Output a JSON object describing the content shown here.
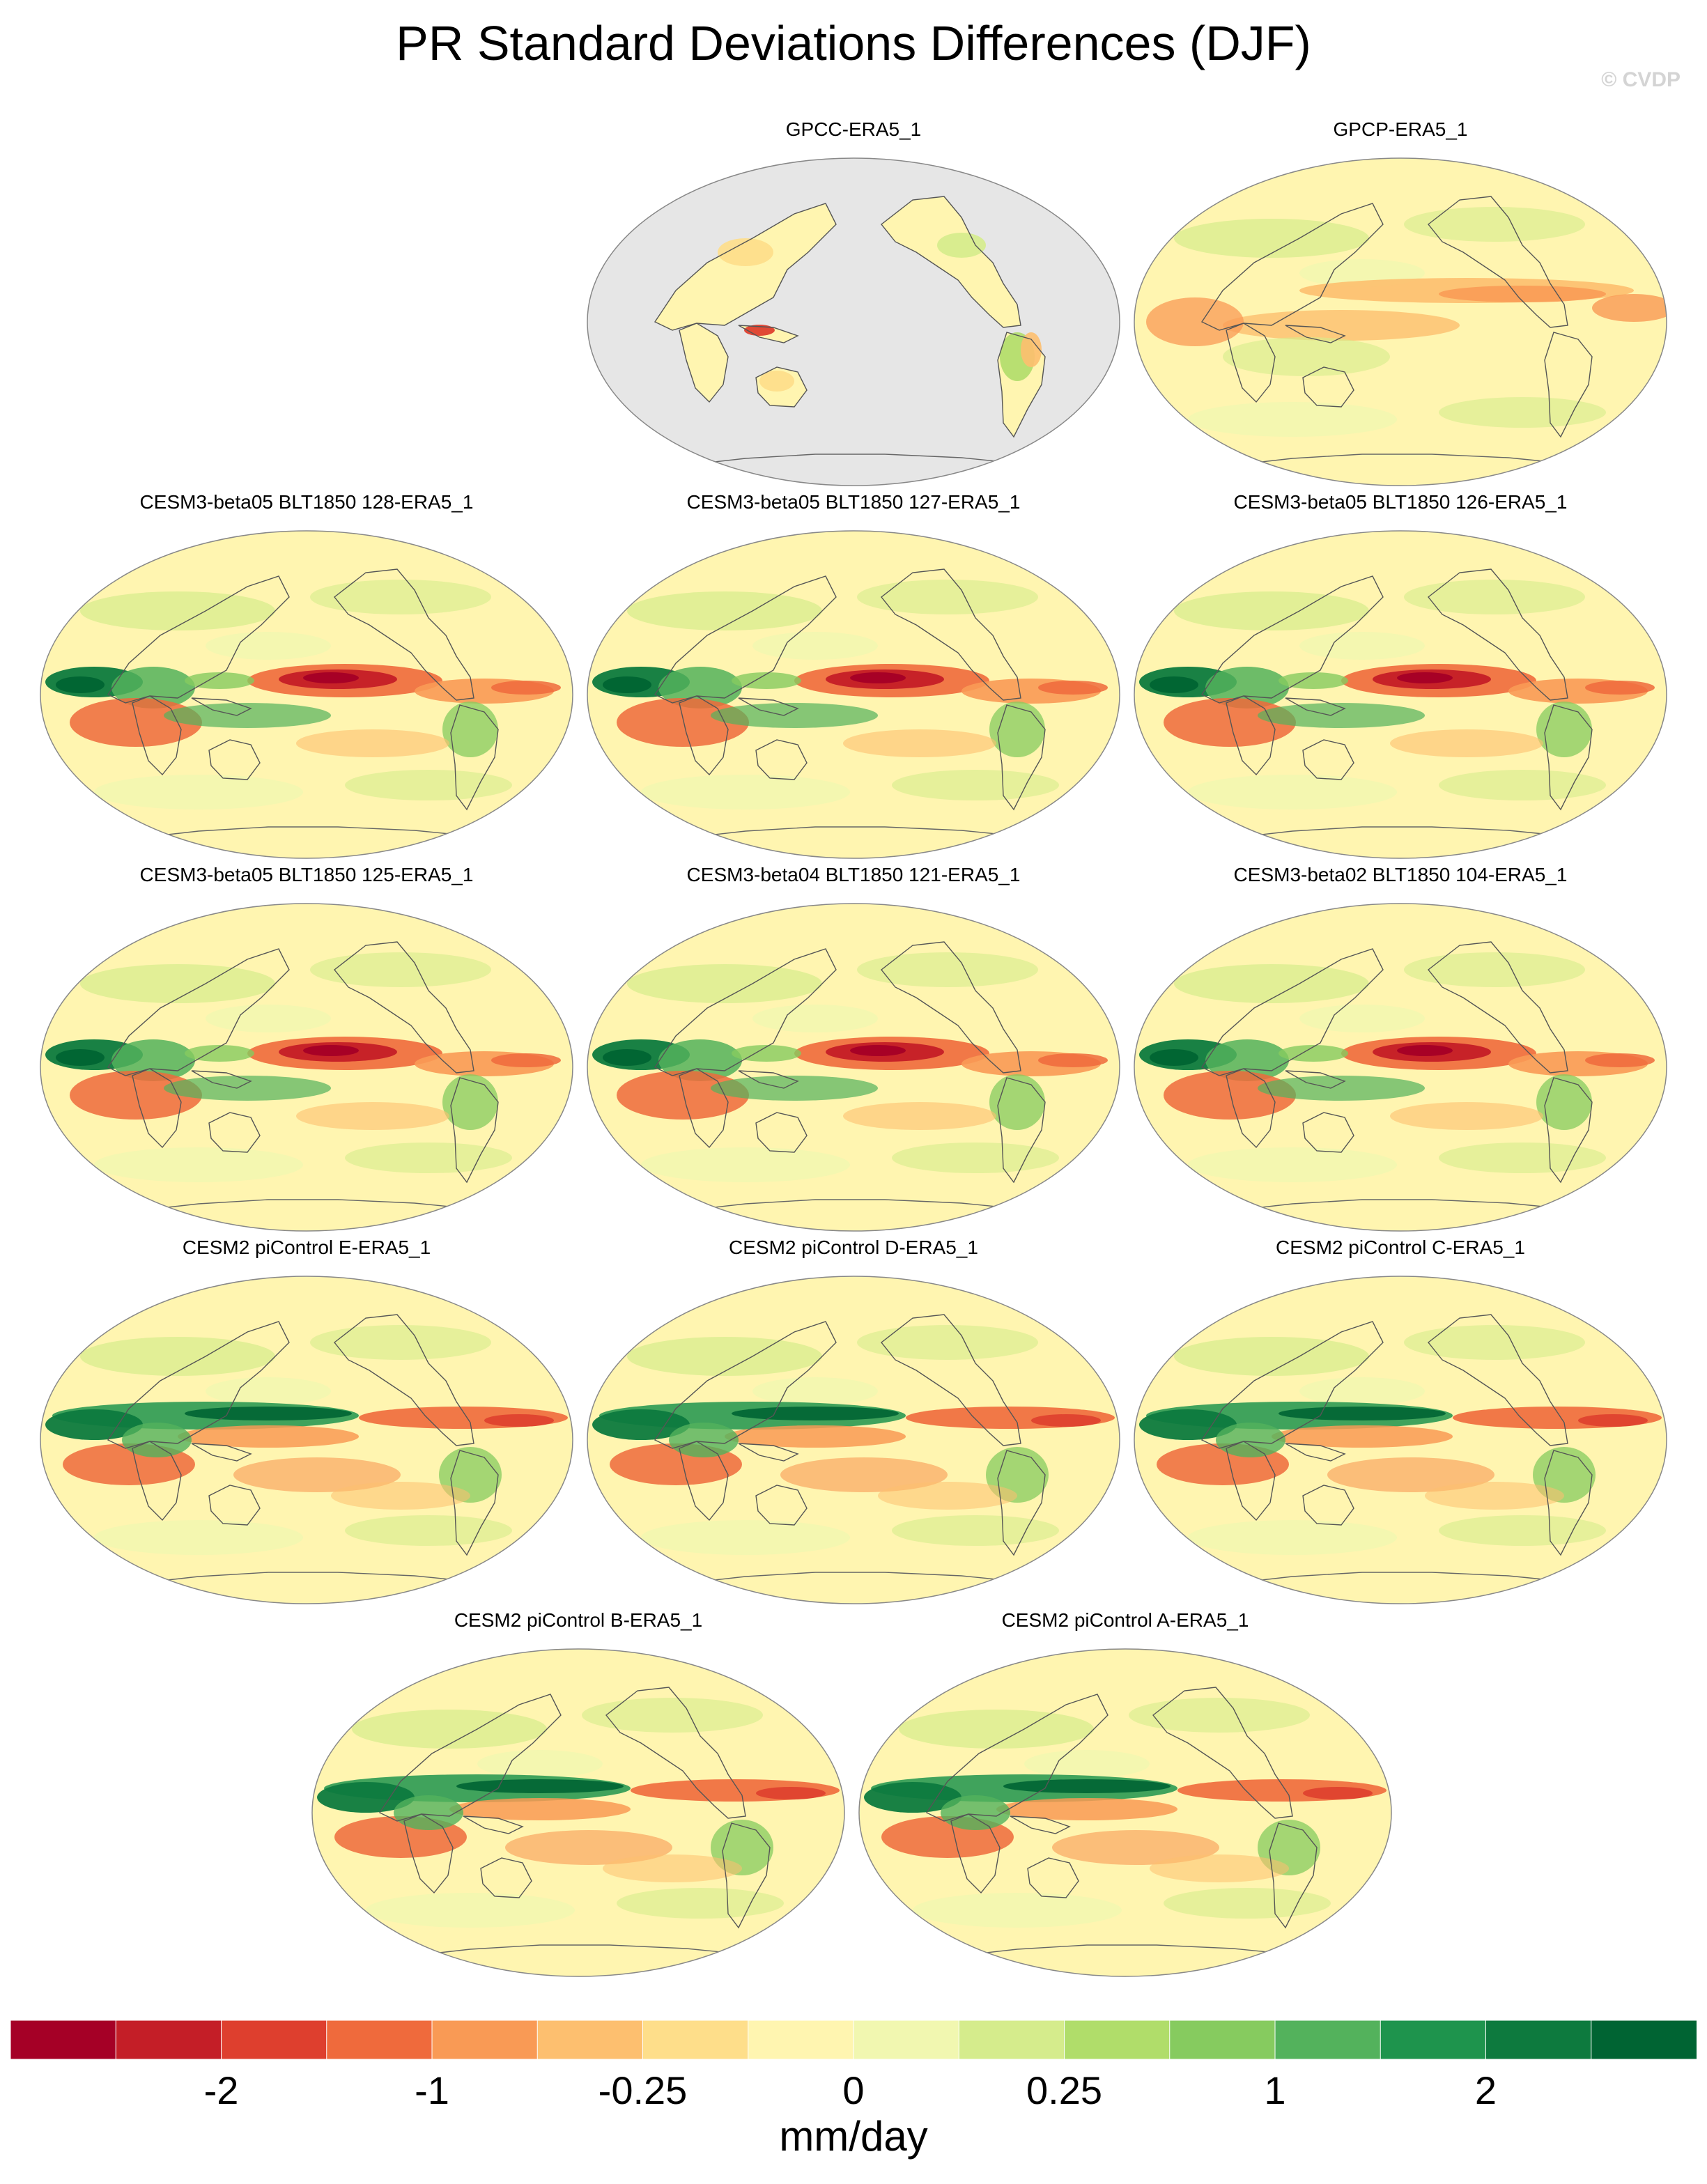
{
  "title": "PR Standard Deviations Differences (DJF)",
  "watermark": "© CVDP",
  "chart_data": {
    "type": "heatmap",
    "title": "PR Standard Deviations Differences (DJF)",
    "projection": "Robinson (global, Pacific-centered)",
    "units": "mm/day",
    "colorbar": {
      "tick_labels": [
        "-2",
        "-1",
        "-0.25",
        "0",
        "0.25",
        "1",
        "2"
      ],
      "colors": [
        "#a50026",
        "#c41e27",
        "#de3f2e",
        "#ef6a3c",
        "#f99a55",
        "#fdbf6f",
        "#fede8a",
        "#fff5b0",
        "#f1f7b0",
        "#d5ec8c",
        "#b0dd6a",
        "#86cb5f",
        "#53b25c",
        "#1e944d",
        "#0d7a3e",
        "#006433"
      ]
    },
    "panels": [
      {
        "label": "GPCC-ERA5_1",
        "land_only": true
      },
      {
        "label": "GPCP-ERA5_1",
        "land_only": false
      },
      {
        "label": "CESM3-beta05 BLT1850 128-ERA5_1",
        "land_only": false
      },
      {
        "label": "CESM3-beta05 BLT1850 127-ERA5_1",
        "land_only": false
      },
      {
        "label": "CESM3-beta05 BLT1850 126-ERA5_1",
        "land_only": false
      },
      {
        "label": "CESM3-beta05 BLT1850 125-ERA5_1",
        "land_only": false
      },
      {
        "label": "CESM3-beta04 BLT1850 121-ERA5_1",
        "land_only": false
      },
      {
        "label": "CESM3-beta02 BLT1850 104-ERA5_1",
        "land_only": false
      },
      {
        "label": "CESM2 piControl E-ERA5_1",
        "land_only": false
      },
      {
        "label": "CESM2 piControl D-ERA5_1",
        "land_only": false
      },
      {
        "label": "CESM2 piControl C-ERA5_1",
        "land_only": false
      },
      {
        "label": "CESM2 piControl B-ERA5_1",
        "land_only": false
      },
      {
        "label": "CESM2 piControl A-ERA5_1",
        "land_only": false
      }
    ]
  }
}
